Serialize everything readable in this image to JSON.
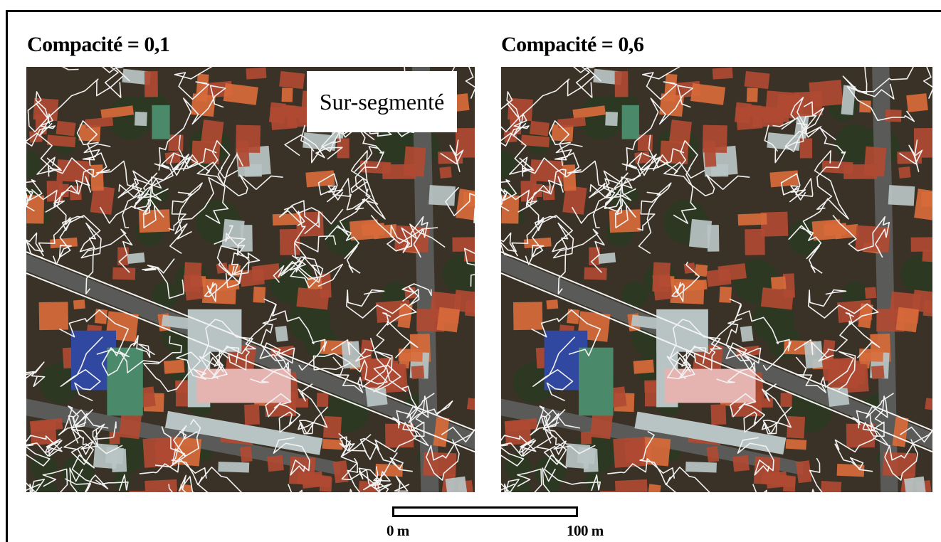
{
  "panels": {
    "left": {
      "title": "Compacité = 0,1",
      "annotation": "Sur-segmenté"
    },
    "right": {
      "title": "Compacité = 0,6"
    }
  },
  "scale": {
    "min_label": "0 m",
    "max_label": "100 m"
  },
  "colors": {
    "ground": "#3a3226",
    "roof_red": "#b04a32",
    "roof_orange": "#d86a3a",
    "roof_blue": "#3048a0",
    "roof_green": "#4a8a6a",
    "roof_pink": "#e6b4b0",
    "roof_gray": "#b8c4c4",
    "vegetation": "#2c3a22",
    "road": "#5a5a58",
    "segment_line": "#f2f2f2"
  }
}
